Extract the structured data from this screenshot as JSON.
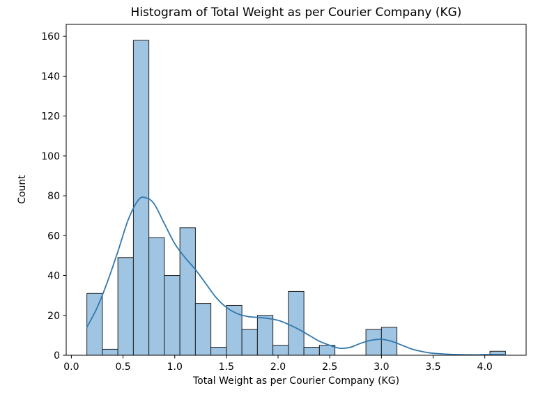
{
  "figure": {
    "background": "#ffffff"
  },
  "chart_data": {
    "type": "histogram",
    "title": "Histogram of Total Weight as per Courier Company (KG)",
    "xlabel": "Total Weight as per Courier Company (KG)",
    "ylabel": "Count",
    "xlim": [
      -0.05,
      4.4
    ],
    "ylim": [
      0,
      166
    ],
    "xtick_labels": [
      "0.0",
      "0.5",
      "1.0",
      "1.5",
      "2.0",
      "2.5",
      "3.0",
      "3.5",
      "4.0"
    ],
    "ytick_labels": [
      "0",
      "20",
      "40",
      "60",
      "80",
      "100",
      "120",
      "140",
      "160"
    ],
    "grid": false,
    "legend": "none",
    "bin_width": 0.15,
    "bins": [
      {
        "left": 0.15,
        "count": 31
      },
      {
        "left": 0.3,
        "count": 3
      },
      {
        "left": 0.45,
        "count": 49
      },
      {
        "left": 0.6,
        "count": 158
      },
      {
        "left": 0.75,
        "count": 59
      },
      {
        "left": 0.9,
        "count": 40
      },
      {
        "left": 1.05,
        "count": 64
      },
      {
        "left": 1.2,
        "count": 26
      },
      {
        "left": 1.35,
        "count": 4
      },
      {
        "left": 1.5,
        "count": 25
      },
      {
        "left": 1.65,
        "count": 13
      },
      {
        "left": 1.8,
        "count": 20
      },
      {
        "left": 1.95,
        "count": 5
      },
      {
        "left": 2.1,
        "count": 32
      },
      {
        "left": 2.25,
        "count": 4
      },
      {
        "left": 2.4,
        "count": 5
      },
      {
        "left": 2.85,
        "count": 13
      },
      {
        "left": 3.0,
        "count": 14
      },
      {
        "left": 4.05,
        "count": 2
      }
    ],
    "kde_curve": {
      "x": [
        0.15,
        0.25,
        0.35,
        0.45,
        0.55,
        0.65,
        0.72,
        0.8,
        0.9,
        1.0,
        1.1,
        1.2,
        1.3,
        1.4,
        1.5,
        1.6,
        1.7,
        1.8,
        1.9,
        2.0,
        2.1,
        2.2,
        2.3,
        2.4,
        2.5,
        2.6,
        2.7,
        2.8,
        2.9,
        3.0,
        3.1,
        3.2,
        3.3,
        3.4,
        3.5,
        3.7,
        3.9,
        4.05,
        4.2
      ],
      "y": [
        14,
        24,
        37,
        52,
        68,
        78,
        79,
        76,
        66,
        56,
        49,
        43,
        36,
        29,
        24,
        21,
        19.5,
        19,
        18.5,
        17.5,
        15.5,
        13,
        10,
        7,
        5,
        3.5,
        4,
        6,
        7.5,
        8,
        7,
        5,
        3,
        1.8,
        1,
        0.4,
        0.2,
        0.4,
        0.3
      ]
    },
    "colors": {
      "bar_fill": "#9fc5e3",
      "bar_edge": "#1f1f1f",
      "kde_line": "#3178ae",
      "axis": "#000000"
    }
  }
}
